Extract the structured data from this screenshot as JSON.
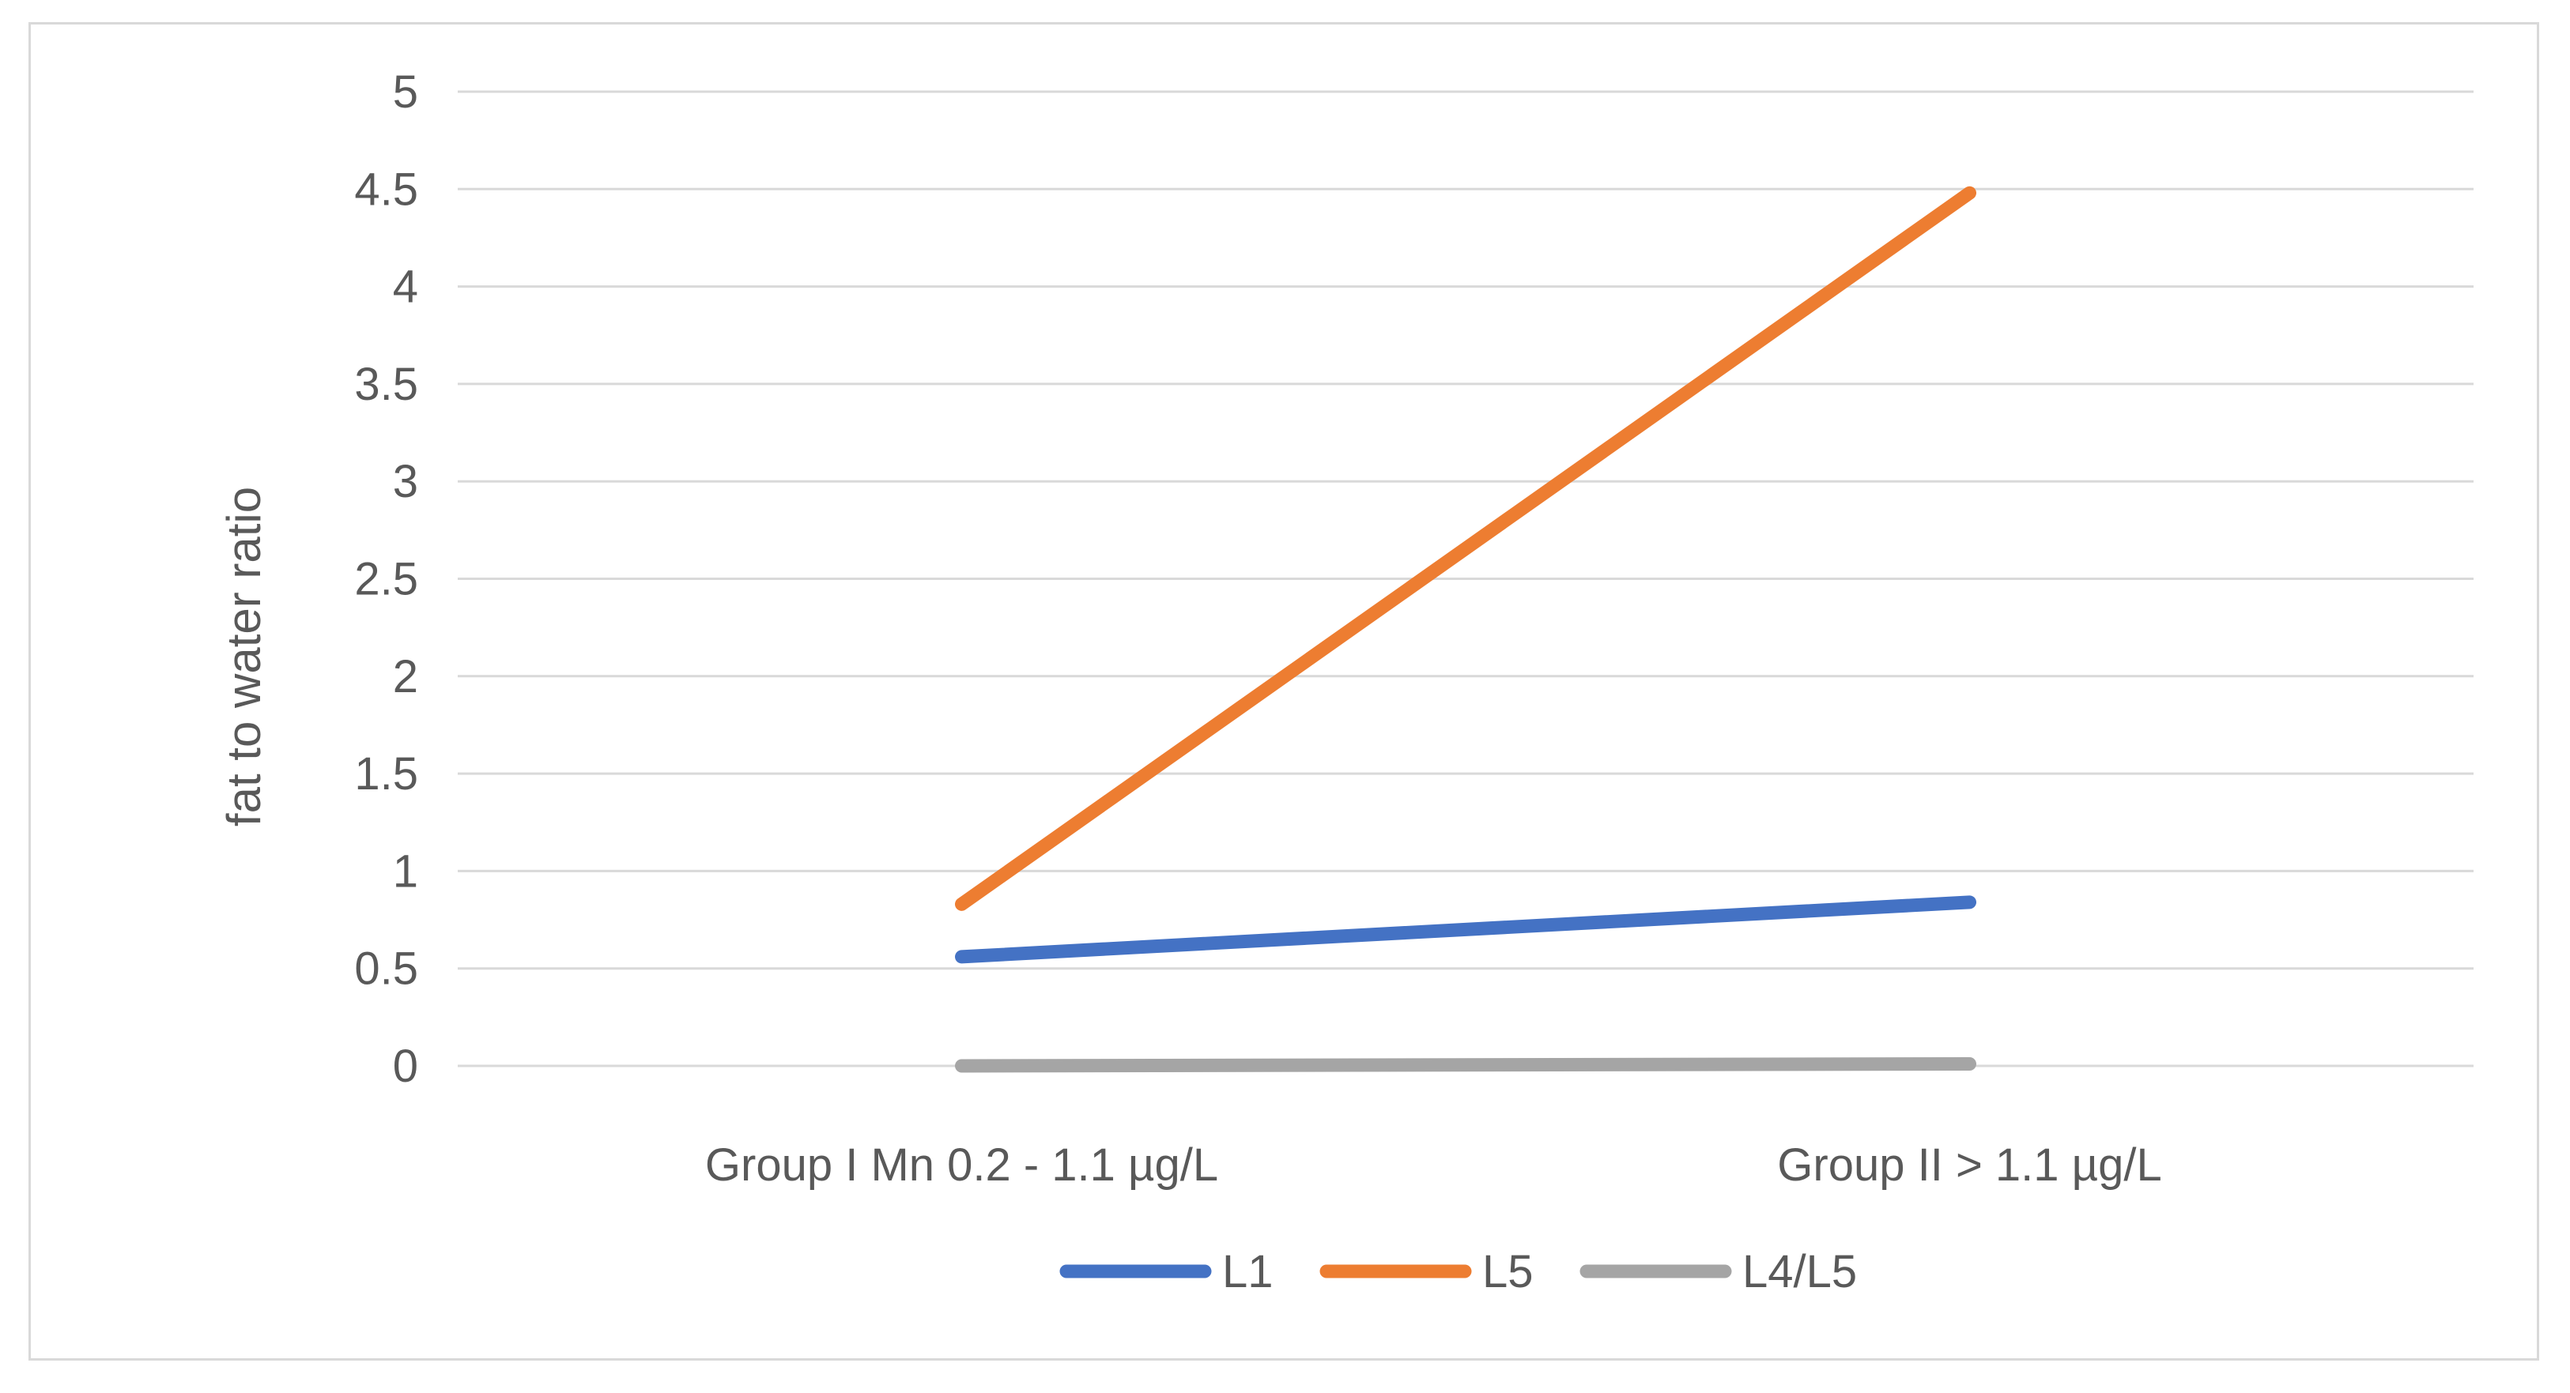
{
  "chart_data": {
    "type": "line",
    "title": "",
    "xlabel": "",
    "ylabel": "fat to water ratio",
    "categories": [
      "Group I Mn 0.2 - 1.1 µg/L",
      "Group II > 1.1 µg/L"
    ],
    "ylim": [
      0,
      5
    ],
    "yticks": [
      "0",
      "0.5",
      "1",
      "1.5",
      "2",
      "2.5",
      "3",
      "3.5",
      "4",
      "4.5",
      "5"
    ],
    "grid": true,
    "legend_position": "bottom",
    "series": [
      {
        "name": "L1",
        "values": [
          0.56,
          0.84
        ],
        "color": "#4472c4"
      },
      {
        "name": "L5",
        "values": [
          0.83,
          4.48
        ],
        "color": "#ed7d31"
      },
      {
        "name": "L4/L5",
        "values": [
          0.0,
          0.01
        ],
        "color": "#a5a5a5"
      }
    ]
  }
}
